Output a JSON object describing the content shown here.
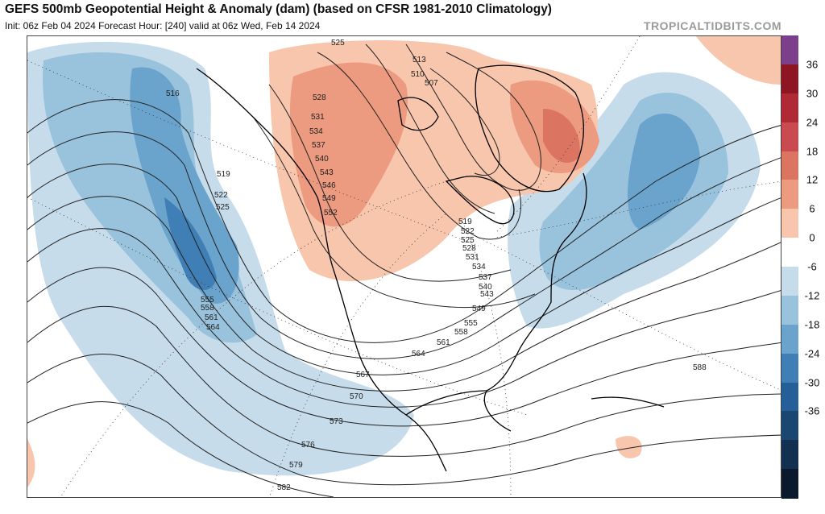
{
  "header": {
    "title": "GEFS 500mb Geopotential Height & Anomaly (dam) (based on CFSR 1981-2010 Climatology)",
    "subtitle": "Init: 06z Feb 04 2024   Forecast Hour: [240]   valid at 06z Wed, Feb 14 2024",
    "brand": "TROPICALTIDBITS.COM"
  },
  "colorbar": {
    "ticks": [
      "36",
      "30",
      "24",
      "18",
      "12",
      "6",
      "0",
      "-6",
      "-12",
      "-18",
      "-24",
      "-30",
      "-36"
    ],
    "colors": [
      "#7b3f8c",
      "#8e1522",
      "#b02a35",
      "#c94b50",
      "#dc7462",
      "#ec9a80",
      "#f7c6ad",
      "#ffffff",
      "#c6dcea",
      "#99c2dd",
      "#6aa3cc",
      "#3f7fb5",
      "#245f97",
      "#1a4672",
      "#123050",
      "#0a1a2c"
    ]
  },
  "map": {
    "contour_labels": [
      "516",
      "519",
      "522",
      "525",
      "555",
      "558",
      "561",
      "564",
      "567",
      "570",
      "573",
      "576",
      "579",
      "582",
      "525",
      "528",
      "531",
      "534",
      "537",
      "540",
      "543",
      "546",
      "549",
      "552",
      "513",
      "510",
      "507",
      "519",
      "522",
      "525",
      "528",
      "531",
      "534",
      "537",
      "540",
      "543",
      "549",
      "555",
      "558",
      "561",
      "564",
      "588"
    ],
    "colors": {
      "negative_light": "#c6dcea",
      "negative_mid": "#99c2dd",
      "negative_dark": "#6aa3cc",
      "negative_deep": "#3f7fb5",
      "positive_light": "#f7c6ad",
      "positive_mid": "#ec9a80",
      "positive_dark": "#dc7462",
      "contour": "#222222",
      "coast": "#000000"
    }
  }
}
